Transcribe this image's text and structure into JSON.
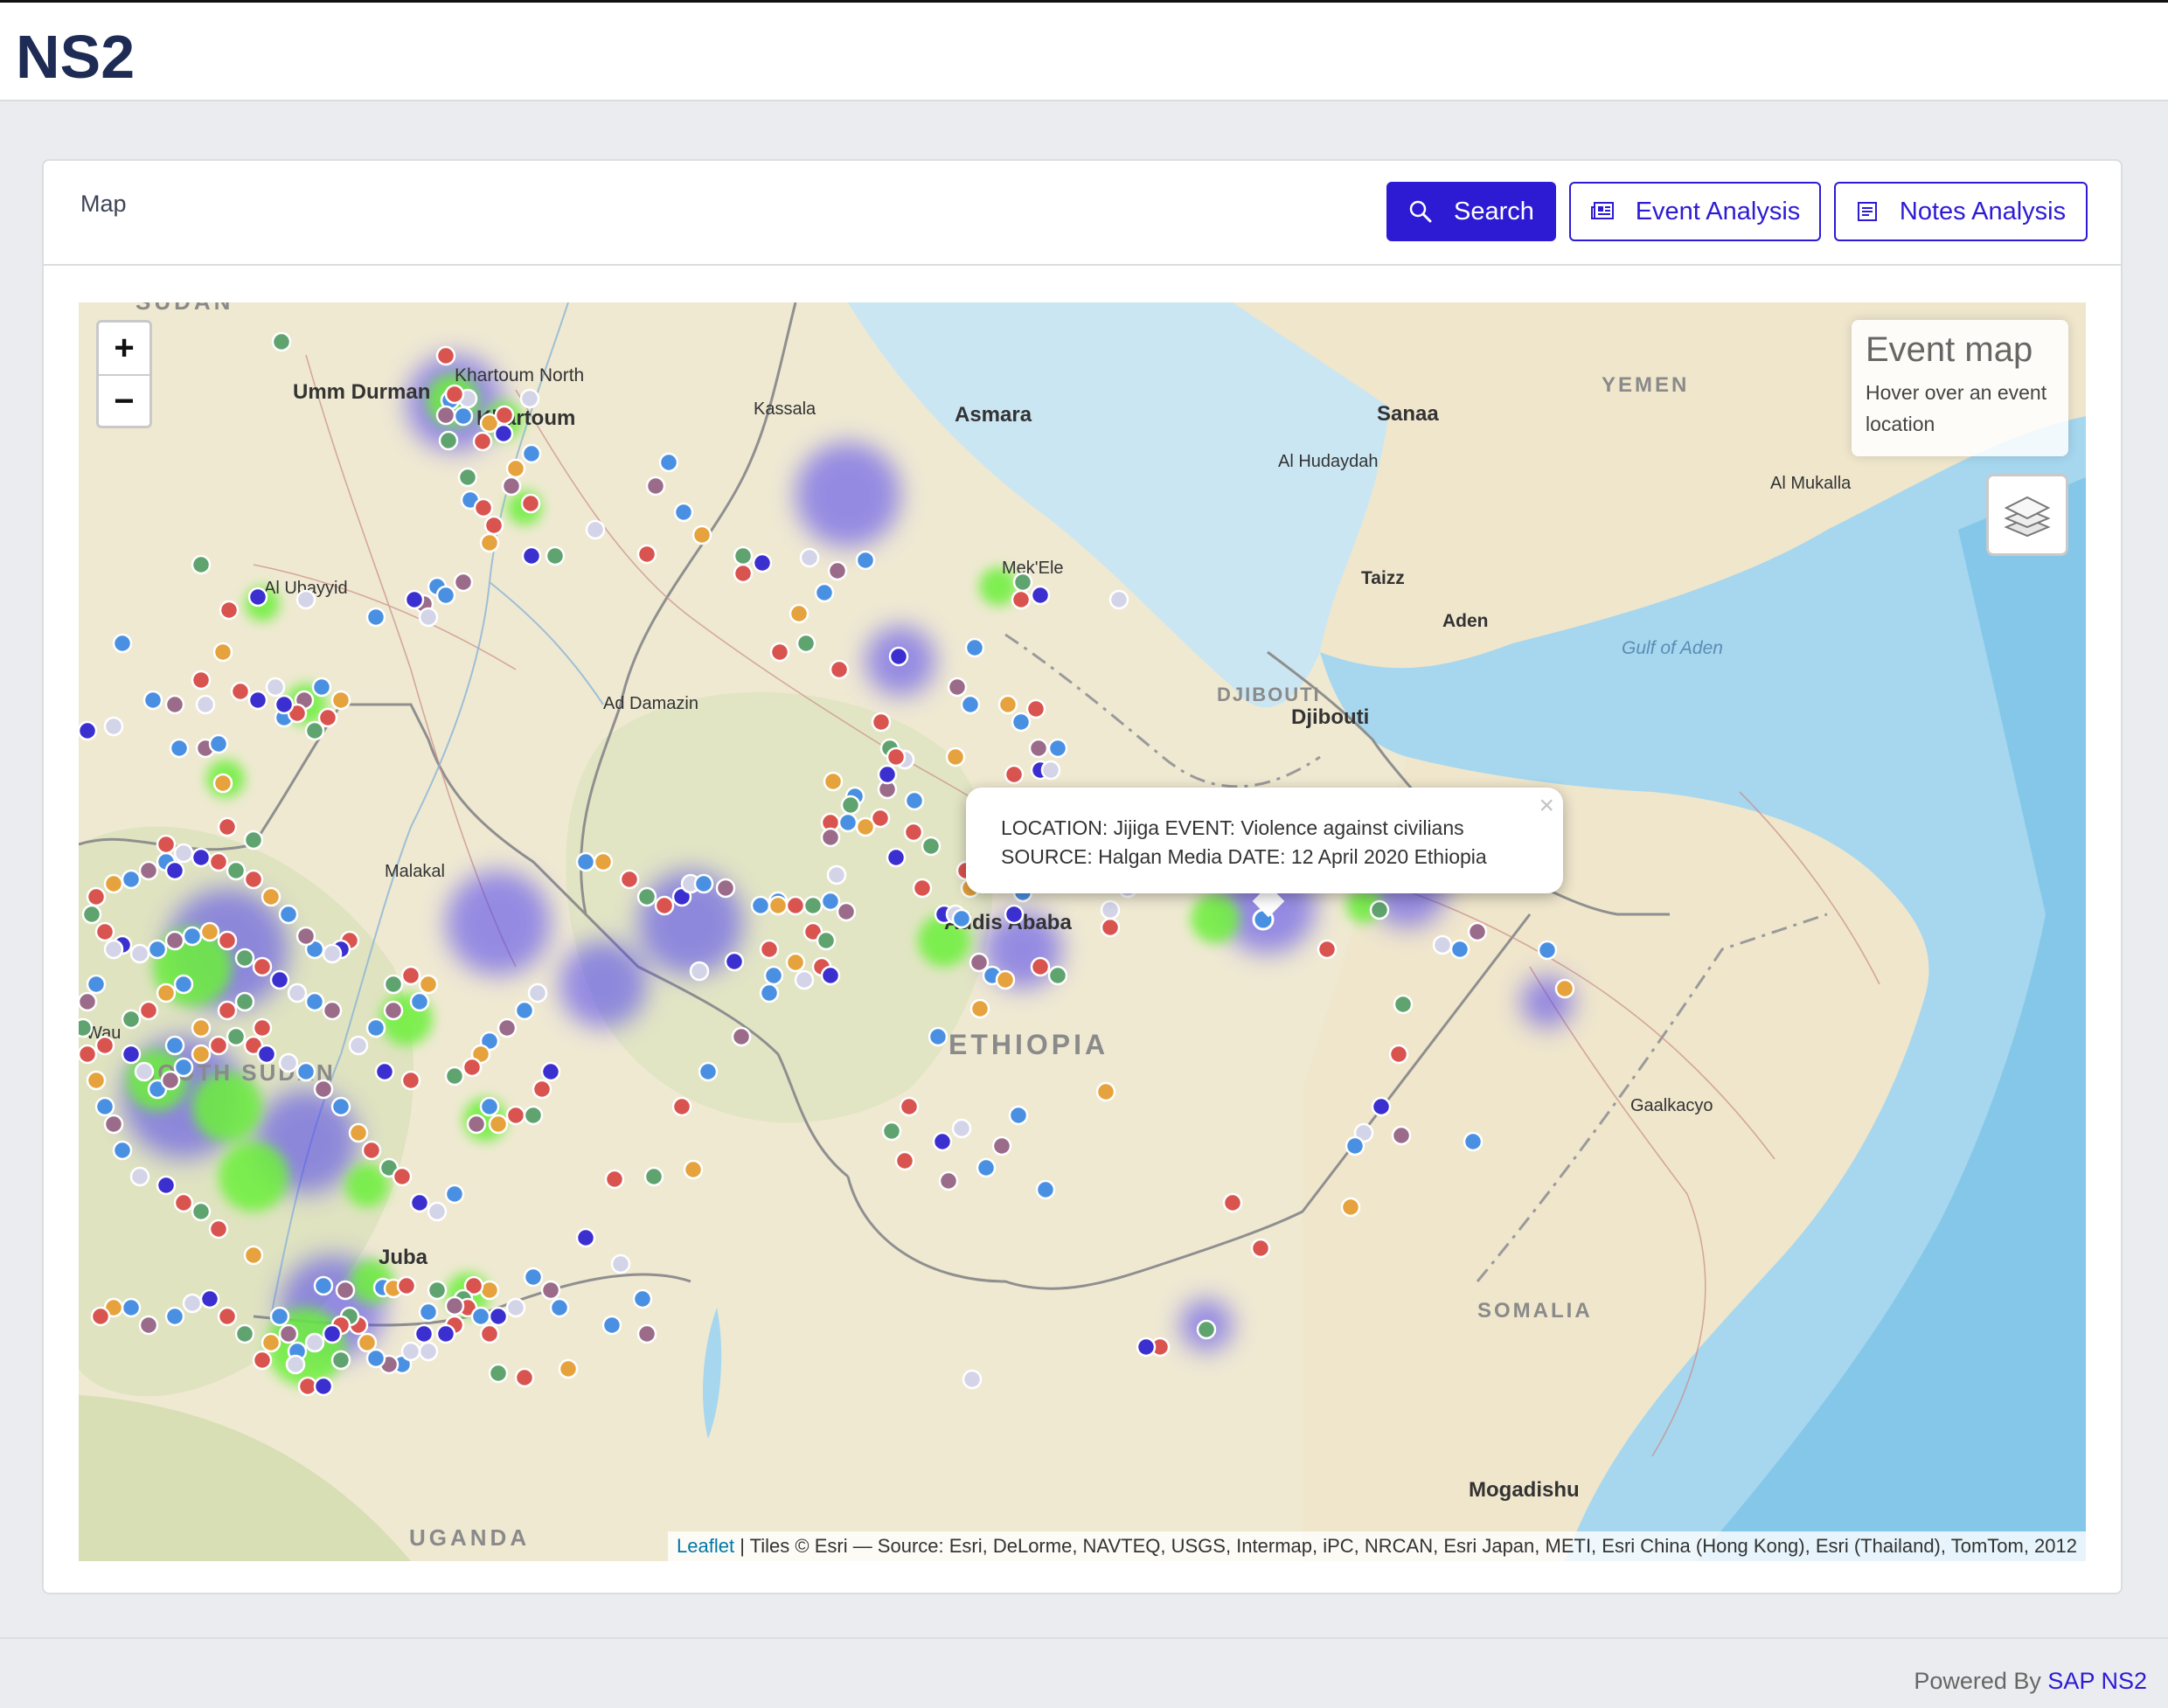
{
  "header": {
    "logo_text": "NS2"
  },
  "card": {
    "title": "Map",
    "buttons": {
      "search": "Search",
      "event_analysis": "Event Analysis",
      "notes_analysis": "Notes Analysis"
    }
  },
  "map": {
    "zoom_in": "+",
    "zoom_out": "−",
    "info": {
      "title": "Event map",
      "hint": "Hover over an event location"
    },
    "popup": {
      "line1": "LOCATION: Jijiga EVENT: Violence against civilians",
      "line2": "SOURCE: Halgan Media DATE: 12 April 2020 Ethiopia",
      "close": "×"
    },
    "attribution": {
      "link": "Leaflet",
      "text": " | Tiles © Esri — Source: Esri, DeLorme, NAVTEQ, USGS, Intermap, iPC, NRCAN, Esri Japan, METI, Esri China (Hong Kong), Esri (Thailand), TomTom, 2012"
    },
    "labels": {
      "sudan": "SUDAN",
      "umm_durman": "Umm Durman",
      "khartoum_north": "Khartoum North",
      "khartoum": "Khartoum",
      "kassala": "Kassala",
      "asmara": "Asmara",
      "sanaa": "Sanaa",
      "yemen": "YEMEN",
      "al_hudaydah": "Al Hudaydah",
      "al_mukalla": "Al Mukalla",
      "mekele": "Mek'Ele",
      "taizz": "Taizz",
      "aden": "Aden",
      "gulf_of_aden": "Gulf of Aden",
      "al_ubayyid": "Al Ubayyid",
      "ad_damazin": "Ad Damazin",
      "djibouti_country": "DJIBOUTI",
      "djibouti_city": "Djibouti",
      "malakal": "Malakal",
      "addis_ababa": "Addis Ababa",
      "ethiopia": "ETHIOPIA",
      "wau": "Wau",
      "south_sudan": "SOUTH SUDAN",
      "gaalkacyo": "Gaalkacyo",
      "juba": "Juba",
      "somalia": "SOMALIA",
      "mogadishu": "Mogadishu",
      "uganda": "UGANDA"
    }
  },
  "footer": {
    "prefix": "Powered By ",
    "link": "SAP NS2"
  },
  "colors": {
    "brand": "#2d1bd4",
    "marker_blue": "#4a90e2",
    "marker_red": "#d9534f",
    "marker_purple": "#9b6b8a",
    "marker_green": "#5fa36f",
    "marker_orange": "#e6a23c",
    "heat_green": "#6cf03a",
    "heat_blue": "#4c3cf0"
  }
}
